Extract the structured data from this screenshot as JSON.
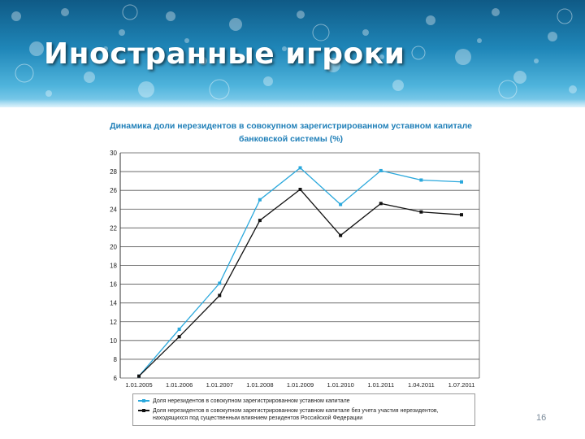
{
  "slide": {
    "title": "Иностранные игроки",
    "page_number": "16"
  },
  "colors": {
    "series1": "#2aa8dc",
    "series2": "#111111",
    "grid": "#555555",
    "chart_title": "#1f7fb8"
  },
  "chart_data": {
    "type": "line",
    "title": "Динамика доли нерезидентов в совокупном зарегистрированном уставном капитале банковской системы (%)",
    "xlabel": "",
    "ylabel": "",
    "categories": [
      "1.01.2005",
      "1.01.2006",
      "1.01.2007",
      "1.01.2008",
      "1.01.2009",
      "1.01.2010",
      "1.01.2011",
      "1.04.2011",
      "1.07.2011"
    ],
    "ylim": [
      6,
      30
    ],
    "yticks": [
      6,
      8,
      10,
      12,
      14,
      16,
      18,
      20,
      22,
      24,
      26,
      28,
      30
    ],
    "grid": true,
    "legend_position": "bottom",
    "series": [
      {
        "name": "Доля нерезидентов в совокупном зарегистрированном уставном капитале",
        "color": "#2aa8dc",
        "values": [
          6.2,
          11.2,
          16.1,
          25.0,
          28.4,
          24.5,
          28.1,
          27.1,
          26.9
        ]
      },
      {
        "name": "Доля нерезидентов в совокупном зарегистрированном уставном капитале без учета участия нерезидентов, находящихся под существенным влиянием резидентов Российской Федерации",
        "color": "#111111",
        "values": [
          6.2,
          10.4,
          14.8,
          22.8,
          26.1,
          21.2,
          24.6,
          23.7,
          23.4
        ]
      }
    ]
  }
}
